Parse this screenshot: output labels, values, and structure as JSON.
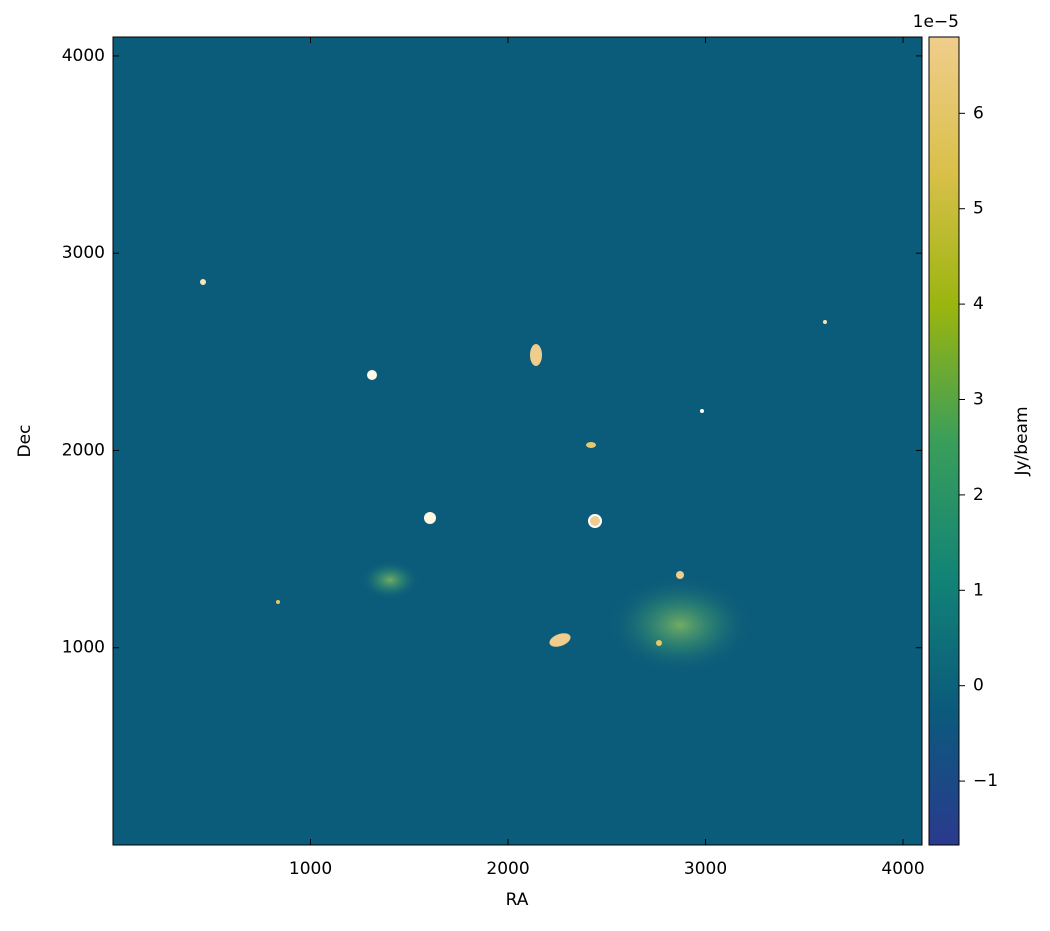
{
  "chart_data": {
    "type": "image",
    "xlabel": "RA",
    "ylabel": "Dec",
    "xlim": [
      0,
      4096
    ],
    "ylim": [
      0,
      4096
    ],
    "xticks": [
      1000,
      2000,
      3000,
      4000
    ],
    "yticks": [
      1000,
      2000,
      3000,
      4000
    ],
    "colorbar": {
      "label": "Jy/beam",
      "offset_text": "1e−5",
      "clim": [
        -1.67,
        6.8
      ],
      "ticks": [
        {
          "value": -1,
          "label": "−1"
        },
        0,
        1,
        2,
        3,
        4,
        5,
        6
      ],
      "colormap": [
        "#2a3a8e",
        "#0b5a7c",
        "#128476",
        "#3a9e5a",
        "#9ab50f",
        "#d9c04a",
        "#f0cd8c"
      ]
    }
  }
}
